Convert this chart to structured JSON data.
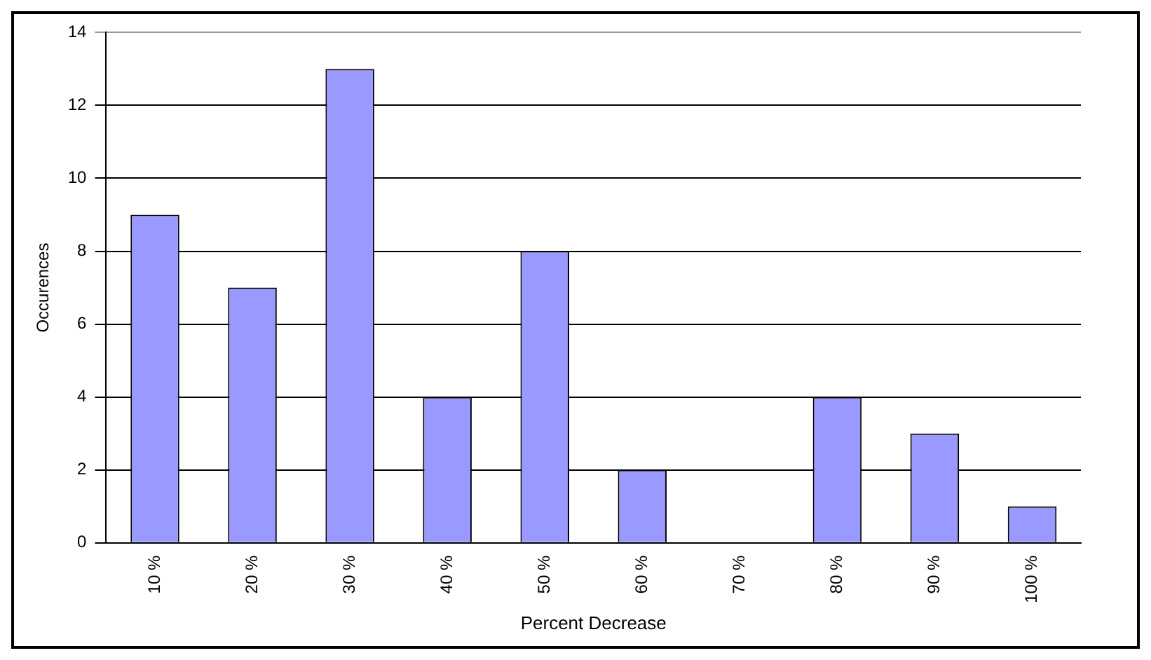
{
  "chart_data": {
    "type": "bar",
    "xlabel": "Percent Decrease",
    "ylabel": "Occurences",
    "categories": [
      "10 %",
      "20 %",
      "30 %",
      "40 %",
      "50 %",
      "60 %",
      "70 %",
      "80 %",
      "90 %",
      "100 %"
    ],
    "values": [
      9,
      7,
      13,
      4,
      8,
      2,
      0,
      4,
      3,
      1
    ],
    "color": "#9999ff",
    "ylim": [
      0,
      14
    ],
    "yticks": [
      0,
      2,
      4,
      6,
      8,
      10,
      12,
      14
    ],
    "grid": "y",
    "legend": false
  }
}
